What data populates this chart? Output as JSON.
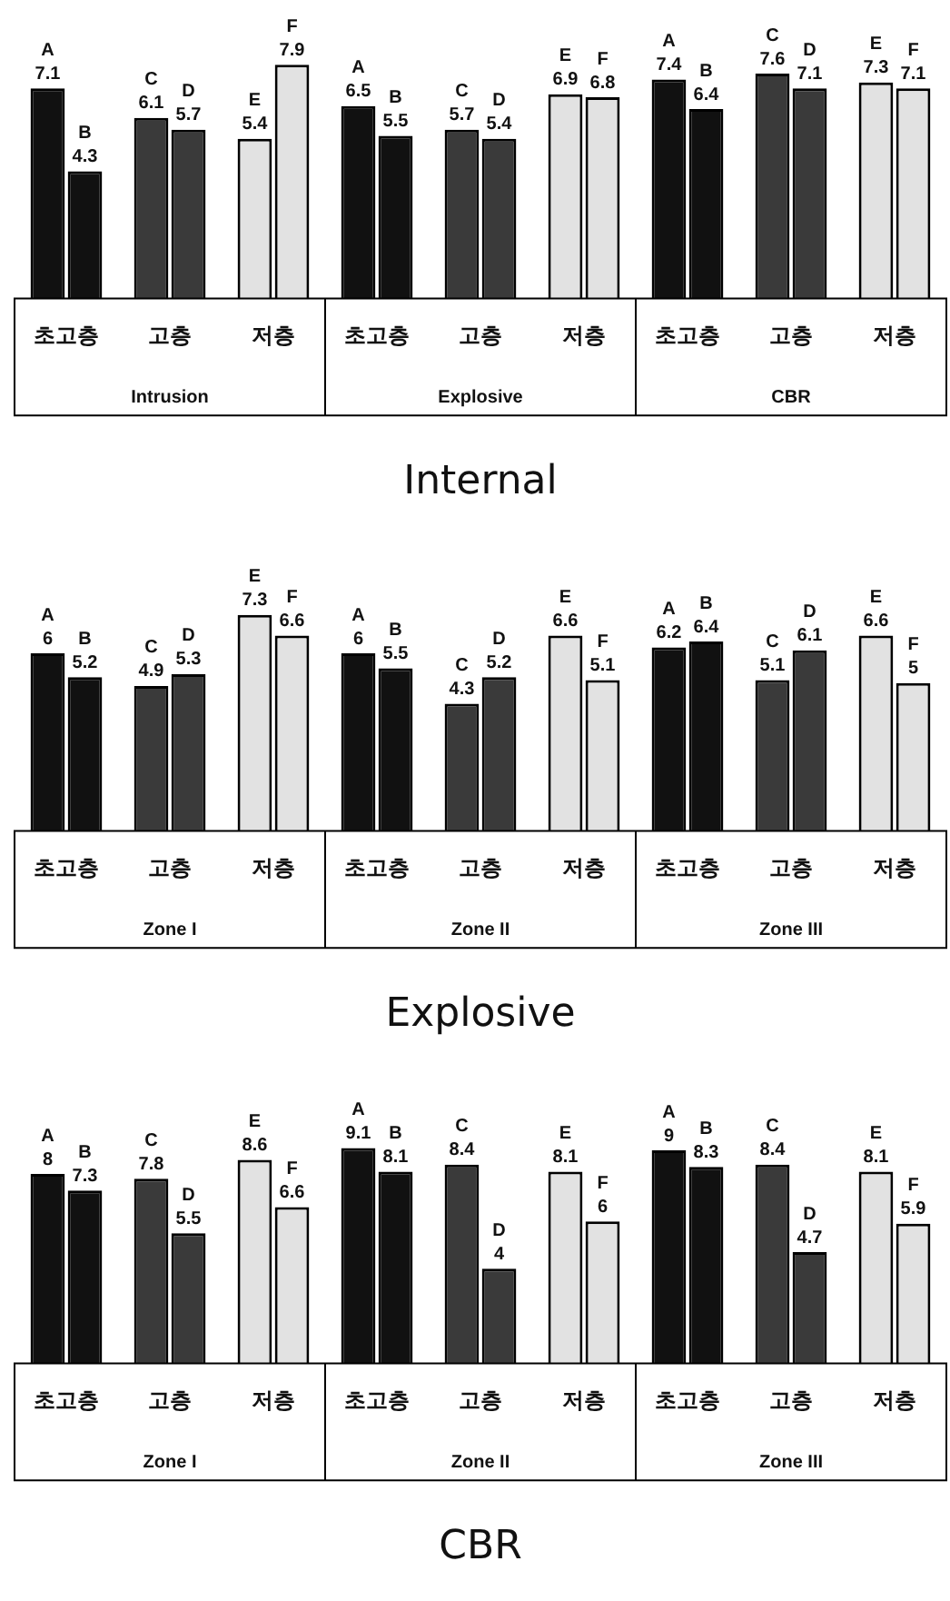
{
  "chart_data": [
    {
      "type": "bar",
      "title": "Internal",
      "categories": [
        "초고층",
        "고층",
        "저층",
        "초고층",
        "고층",
        "저층",
        "초고층",
        "고층",
        "저층"
      ],
      "annotations": [
        "Intrusion",
        "Explosive",
        "CBR"
      ],
      "legend": false,
      "series": [
        {
          "colors": [
            "#111111",
            "#3a3a3a",
            "#e2e2e2",
            "#111111",
            "#3a3a3a",
            "#e2e2e2",
            "#111111",
            "#3a3a3a",
            "#e2e2e2"
          ],
          "values": [
            7.1,
            6.1,
            5.4,
            6.5,
            5.7,
            6.9,
            7.4,
            7.6,
            7.3
          ],
          "value_labels": [
            "A\n7.1",
            "C\n6.1",
            "E\n5.4",
            "A\n6.5",
            "C\n5.7",
            "E\n6.9",
            "A\n7.4",
            "C\n7.6",
            "E\n7.3"
          ]
        },
        {
          "colors": [
            "#111111",
            "#3a3a3a",
            "#e2e2e2",
            "#111111",
            "#3a3a3a",
            "#e2e2e2",
            "#111111",
            "#3a3a3a",
            "#e2e2e2"
          ],
          "values": [
            4.3,
            5.7,
            7.9,
            5.5,
            5.4,
            6.8,
            6.4,
            7.1,
            7.1
          ],
          "value_labels": [
            "B\n4.3",
            "D\n5.7",
            "F\n7.9",
            "B\n5.5",
            "D\n5.4",
            "F\n6.8",
            "B\n6.4",
            "D\n7.1",
            "F\n7.1"
          ]
        }
      ]
    },
    {
      "type": "bar",
      "title": "Explosive",
      "categories": [
        "초고층",
        "고층",
        "저층",
        "초고층",
        "고층",
        "저층",
        "초고층",
        "고층",
        "저층"
      ],
      "annotations": [
        "Zone I",
        "Zone II",
        "Zone III"
      ],
      "legend": false,
      "series": [
        {
          "colors": [
            "#111111",
            "#3a3a3a",
            "#e2e2e2",
            "#111111",
            "#3a3a3a",
            "#e2e2e2",
            "#111111",
            "#3a3a3a",
            "#e2e2e2"
          ],
          "values": [
            6,
            4.9,
            7.3,
            6,
            4.3,
            6.6,
            6.2,
            5.1,
            6.6
          ],
          "value_labels": [
            "A\n6",
            "C\n4.9",
            "E\n7.3",
            "A\n6",
            "C\n4.3",
            "E\n6.6",
            "A\n6.2",
            "C\n5.1",
            "E\n6.6"
          ]
        },
        {
          "colors": [
            "#111111",
            "#3a3a3a",
            "#e2e2e2",
            "#111111",
            "#3a3a3a",
            "#e2e2e2",
            "#111111",
            "#3a3a3a",
            "#e2e2e2"
          ],
          "values": [
            5.2,
            5.3,
            6.6,
            5.5,
            5.2,
            5.1,
            6.4,
            6.1,
            5
          ],
          "value_labels": [
            "B\n5.2",
            "D\n5.3",
            "F\n6.6",
            "B\n5.5",
            "D\n5.2",
            "F\n5.1",
            "B\n6.4",
            "D\n6.1",
            "F\n5"
          ]
        }
      ]
    },
    {
      "type": "bar",
      "title": "CBR",
      "categories": [
        "초고층",
        "고층",
        "저층",
        "초고층",
        "고층",
        "저층",
        "초고층",
        "고층",
        "저층"
      ],
      "annotations": [
        "Zone I",
        "Zone II",
        "Zone III"
      ],
      "legend": false,
      "series": [
        {
          "colors": [
            "#111111",
            "#3a3a3a",
            "#e2e2e2",
            "#111111",
            "#3a3a3a",
            "#e2e2e2",
            "#111111",
            "#3a3a3a",
            "#e2e2e2"
          ],
          "values": [
            8,
            7.8,
            8.6,
            9.1,
            8.4,
            8.1,
            9,
            8.4,
            8.1
          ],
          "value_labels": [
            "A\n8",
            "C\n7.8",
            "E\n8.6",
            "A\n9.1",
            "C\n8.4",
            "E\n8.1",
            "A\n9",
            "C\n8.4",
            "E\n8.1"
          ]
        },
        {
          "colors": [
            "#111111",
            "#3a3a3a",
            "#e2e2e2",
            "#111111",
            "#3a3a3a",
            "#e2e2e2",
            "#111111",
            "#3a3a3a",
            "#e2e2e2"
          ],
          "values": [
            7.3,
            5.5,
            6.6,
            8.1,
            4,
            6,
            8.3,
            4.7,
            5.9
          ],
          "value_labels": [
            "B\n7.3",
            "D\n5.5",
            "F\n6.6",
            "B\n8.1",
            "D\n4",
            "F\n6",
            "B\n8.3",
            "D\n4.7",
            "F\n5.9"
          ]
        }
      ]
    }
  ]
}
